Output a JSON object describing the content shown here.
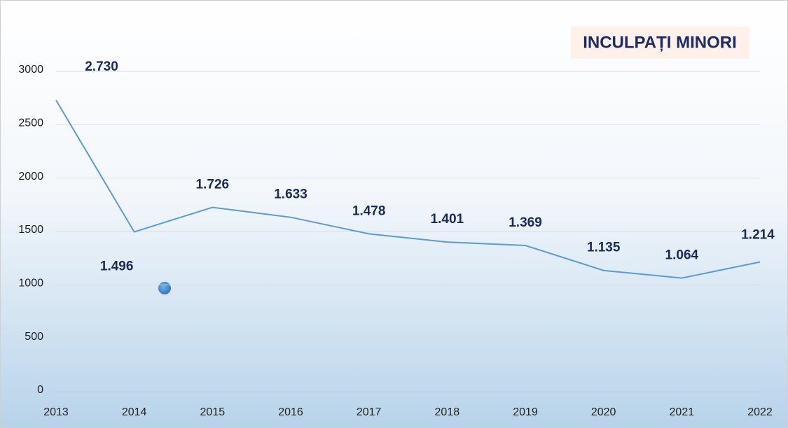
{
  "chart_data": {
    "type": "line",
    "title": "INCULPAȚI MINORI",
    "categories": [
      "2013",
      "2014",
      "2015",
      "2016",
      "2017",
      "2018",
      "2019",
      "2020",
      "2021",
      "2022"
    ],
    "series": [
      {
        "name": "Inculpați minori",
        "color": "#5b9bd5",
        "values": [
          2730,
          1496,
          1726,
          1633,
          1478,
          1401,
          1369,
          1135,
          1064,
          1214
        ],
        "value_labels": [
          "2.730",
          "1.496",
          "1.726",
          "1.633",
          "1.478",
          "1.401",
          "1.369",
          "1.135",
          "1.064",
          "1.214"
        ]
      }
    ],
    "ylim": [
      0,
      3000
    ],
    "yticks": [
      0,
      500,
      1000,
      1500,
      2000,
      2500,
      3000
    ],
    "grid": true
  }
}
